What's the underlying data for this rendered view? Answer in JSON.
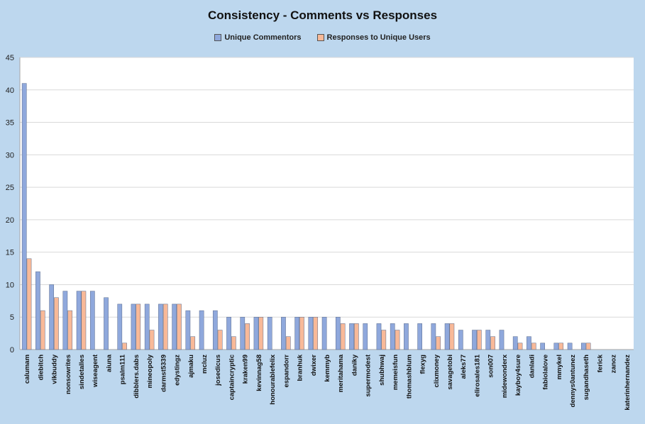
{
  "chart_data": {
    "type": "bar",
    "title": "Consistency - Comments vs Responses",
    "categories": [
      "calumam",
      "diebitch",
      "vikbuddy",
      "nonsowrites",
      "sindetalles",
      "wiseagent",
      "aiuna",
      "psalm111",
      "dibblers.dabs",
      "mineopoly",
      "darmst5339",
      "edystingz",
      "ajmaku",
      "mcluz",
      "josedicus",
      "captaincryptic",
      "kraken99",
      "kevinnag58",
      "honourablefelix",
      "espandorr",
      "branhuk",
      "dwixer",
      "kemmyb",
      "meritahama",
      "daniky",
      "supermodest",
      "shubhwaj",
      "memeisfun",
      "thomashblum",
      "flexyg",
      "clixmoney",
      "savagetobi",
      "aleks77",
      "elirosales181",
      "son007",
      "midewonderx",
      "kayboy4sure",
      "danladi",
      "fabiolalove",
      "mmykel",
      "dennys0antunez",
      "sugandhaseth",
      "ferick",
      "zanoz",
      "katerinhernandez"
    ],
    "series": [
      {
        "name": "Unique Commentors",
        "color": "#8fa8dc",
        "values": [
          41,
          12,
          10,
          9,
          9,
          9,
          8,
          7,
          7,
          7,
          7,
          7,
          6,
          6,
          6,
          5,
          5,
          5,
          5,
          5,
          5,
          5,
          5,
          5,
          4,
          4,
          4,
          4,
          4,
          4,
          4,
          4,
          3,
          3,
          3,
          3,
          2,
          2,
          1,
          1,
          1,
          1,
          0,
          0,
          0
        ]
      },
      {
        "name": "Responses to Unique Users",
        "color": "#f8b998",
        "values": [
          14,
          6,
          8,
          6,
          9,
          0,
          0,
          1,
          7,
          3,
          7,
          7,
          2,
          0,
          3,
          2,
          4,
          5,
          0,
          2,
          5,
          5,
          0,
          4,
          4,
          0,
          3,
          3,
          0,
          0,
          2,
          4,
          0,
          3,
          2,
          0,
          1,
          1,
          0,
          1,
          0,
          1,
          0,
          0,
          0
        ]
      }
    ],
    "ylim": [
      0,
      45
    ],
    "yticks": [
      0,
      5,
      10,
      15,
      20,
      25,
      30,
      35,
      40,
      45
    ],
    "grid": true,
    "legend": "top-center"
  }
}
